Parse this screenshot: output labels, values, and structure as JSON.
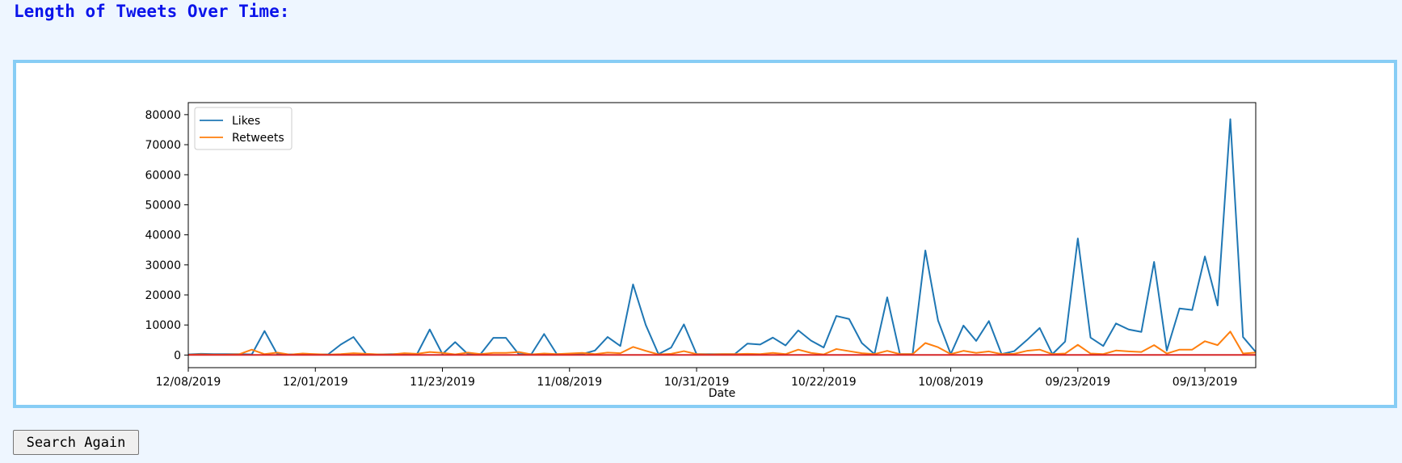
{
  "page": {
    "title": "Length of Tweets Over Time:",
    "search_again_label": "Search Again"
  },
  "chart_data": {
    "type": "line",
    "title": "",
    "xlabel": "Date",
    "ylabel": "",
    "ylim": [
      -4200,
      84000
    ],
    "yticks": [
      0,
      10000,
      20000,
      30000,
      40000,
      50000,
      60000,
      70000,
      80000
    ],
    "x_tick_labels": [
      {
        "index": 0,
        "label": "12/08/2019"
      },
      {
        "index": 10,
        "label": "12/01/2019"
      },
      {
        "index": 20,
        "label": "11/23/2019"
      },
      {
        "index": 30,
        "label": "11/08/2019"
      },
      {
        "index": 40,
        "label": "10/31/2019"
      },
      {
        "index": 50,
        "label": "10/22/2019"
      },
      {
        "index": 60,
        "label": "10/08/2019"
      },
      {
        "index": 70,
        "label": "09/23/2019"
      },
      {
        "index": 80,
        "label": "09/13/2019"
      }
    ],
    "legend_position": "top-left",
    "grid": false,
    "series": [
      {
        "name": "Likes",
        "color": "#1f77b4",
        "values": [
          200,
          400,
          300,
          300,
          300,
          200,
          8000,
          300,
          200,
          300,
          200,
          200,
          3500,
          6000,
          300,
          200,
          300,
          300,
          300,
          8500,
          300,
          4300,
          300,
          300,
          5700,
          5700,
          300,
          300,
          7000,
          300,
          300,
          300,
          1500,
          6000,
          3000,
          23500,
          10000,
          300,
          2500,
          10200,
          300,
          300,
          300,
          300,
          3800,
          3500,
          5800,
          3200,
          8200,
          4800,
          2500,
          13000,
          12000,
          4000,
          300,
          19200,
          300,
          300,
          34800,
          11500,
          300,
          9800,
          4700,
          11300,
          300,
          1300,
          5000,
          9000,
          300,
          4500,
          38800,
          5800,
          3000,
          10500,
          8500,
          7700,
          31000,
          1500,
          15500,
          15000,
          32800,
          16500,
          78500,
          6000,
          1000
        ]
      },
      {
        "name": "Retweets",
        "color": "#ff7f0e",
        "values": [
          100,
          200,
          150,
          150,
          250,
          1800,
          300,
          800,
          150,
          500,
          300,
          150,
          300,
          600,
          400,
          200,
          200,
          600,
          400,
          1000,
          700,
          200,
          800,
          300,
          700,
          700,
          1000,
          200,
          500,
          300,
          500,
          700,
          300,
          800,
          600,
          2700,
          1400,
          200,
          400,
          1300,
          300,
          200,
          300,
          300,
          400,
          300,
          700,
          300,
          1800,
          700,
          200,
          2000,
          1300,
          600,
          300,
          1400,
          300,
          300,
          4000,
          2600,
          300,
          1400,
          700,
          1200,
          300,
          400,
          1400,
          1800,
          300,
          500,
          3400,
          500,
          300,
          1500,
          1200,
          1000,
          3300,
          500,
          1800,
          1800,
          4600,
          3300,
          7800,
          500,
          800
        ]
      },
      {
        "name": "",
        "color": "#d62728",
        "values": [
          40,
          40,
          40,
          40,
          40,
          40,
          40,
          40,
          40,
          40,
          40,
          40,
          40,
          40,
          40,
          40,
          40,
          40,
          40,
          40,
          40,
          40,
          40,
          40,
          40,
          40,
          40,
          40,
          40,
          40,
          40,
          40,
          40,
          40,
          40,
          40,
          40,
          40,
          40,
          40,
          40,
          40,
          40,
          40,
          40,
          40,
          40,
          40,
          40,
          40,
          40,
          40,
          40,
          40,
          40,
          40,
          40,
          40,
          40,
          40,
          40,
          40,
          40,
          40,
          40,
          40,
          40,
          40,
          40,
          40,
          40,
          40,
          40,
          40,
          40,
          40,
          40,
          40,
          40,
          40,
          40,
          40,
          40,
          40,
          40
        ]
      }
    ]
  }
}
